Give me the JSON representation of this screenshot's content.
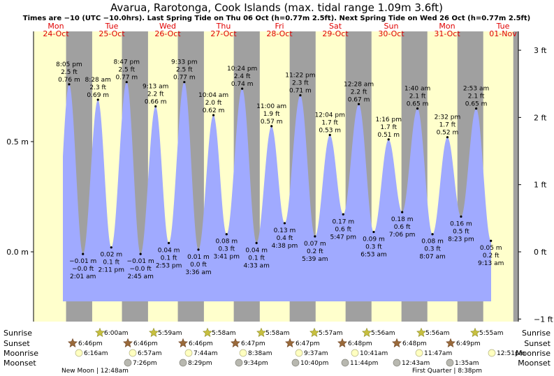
{
  "title": "Avarua, Rarotonga, Cook Islands (max. tidal range 1.09m 3.6ft)",
  "subtitle": "Times are −10 (UTC −10.0hrs). Last Spring Tide on Thu 06 Oct (h=0.77m 2.5ft). Next Spring Tide on Wed 26 Oct (h=0.77m 2.5ft)",
  "colors": {
    "day": "#ffffcc",
    "night": "#a0a0a0",
    "tide": "#a0aaff",
    "day_label": "#e00000"
  },
  "days": [
    {
      "name": "Mon",
      "date": "24-Oct"
    },
    {
      "name": "Tue",
      "date": "25-Oct"
    },
    {
      "name": "Wed",
      "date": "26-Oct"
    },
    {
      "name": "Thu",
      "date": "27-Oct"
    },
    {
      "name": "Fri",
      "date": "28-Oct"
    },
    {
      "name": "Sat",
      "date": "29-Oct"
    },
    {
      "name": "Sun",
      "date": "30-Oct"
    },
    {
      "name": "Mon",
      "date": "31-Oct"
    },
    {
      "name": "Tue",
      "date": "01-Nov"
    }
  ],
  "chart_data": {
    "type": "area",
    "x_unit": "date/time",
    "y_unit": "m",
    "ylim": [
      -0.23,
      0.95
    ],
    "left_ticks": [
      "0.5 m",
      "0.0 m"
    ],
    "left_tick_values": [
      0.5,
      0.0
    ],
    "right_ticks": [
      "3 ft",
      "2 ft",
      "1 ft",
      "0 ft",
      "−1 ft"
    ],
    "right_tick_values_ft": [
      3,
      2,
      1,
      0,
      -1
    ],
    "tides": [
      {
        "type": "high",
        "time": "8:05 pm",
        "day": 0,
        "m": 0.76,
        "ft": "2.5 ft",
        "m_label": "0.76 m"
      },
      {
        "type": "low",
        "time": "2:01 am",
        "day": 1,
        "m": -0.01,
        "ft": "−0.0 ft",
        "m_label": "−0.01 m"
      },
      {
        "type": "high",
        "time": "8:28 am",
        "day": 1,
        "m": 0.69,
        "ft": "2.3 ft",
        "m_label": "0.69 m"
      },
      {
        "type": "low",
        "time": "2:11 pm",
        "day": 1,
        "m": 0.02,
        "ft": "0.1 ft",
        "m_label": "0.02 m"
      },
      {
        "type": "high",
        "time": "8:47 pm",
        "day": 1,
        "m": 0.77,
        "ft": "2.5 ft",
        "m_label": "0.77 m"
      },
      {
        "type": "low",
        "time": "2:45 am",
        "day": 2,
        "m": -0.01,
        "ft": "−0.0 ft",
        "m_label": "−0.01 m"
      },
      {
        "type": "high",
        "time": "9:13 am",
        "day": 2,
        "m": 0.66,
        "ft": "2.2 ft",
        "m_label": "0.66 m"
      },
      {
        "type": "low",
        "time": "2:53 pm",
        "day": 2,
        "m": 0.04,
        "ft": "0.1 ft",
        "m_label": "0.04 m"
      },
      {
        "type": "high",
        "time": "9:33 pm",
        "day": 2,
        "m": 0.77,
        "ft": "2.5 ft",
        "m_label": "0.77 m"
      },
      {
        "type": "low",
        "time": "3:36 am",
        "day": 3,
        "m": 0.01,
        "ft": "0.0 ft",
        "m_label": "0.01 m"
      },
      {
        "type": "high",
        "time": "10:04 am",
        "day": 3,
        "m": 0.62,
        "ft": "2.0 ft",
        "m_label": "0.62 m"
      },
      {
        "type": "low",
        "time": "3:41 pm",
        "day": 3,
        "m": 0.08,
        "ft": "0.3 ft",
        "m_label": "0.08 m"
      },
      {
        "type": "high",
        "time": "10:24 pm",
        "day": 3,
        "m": 0.74,
        "ft": "2.4 ft",
        "m_label": "0.74 m"
      },
      {
        "type": "low",
        "time": "4:33 am",
        "day": 4,
        "m": 0.04,
        "ft": "0.1 ft",
        "m_label": "0.04 m"
      },
      {
        "type": "high",
        "time": "11:00 am",
        "day": 4,
        "m": 0.57,
        "ft": "1.9 ft",
        "m_label": "0.57 m"
      },
      {
        "type": "low",
        "time": "4:38 pm",
        "day": 4,
        "m": 0.13,
        "ft": "0.4 ft",
        "m_label": "0.13 m"
      },
      {
        "type": "high",
        "time": "11:22 pm",
        "day": 4,
        "m": 0.71,
        "ft": "2.3 ft",
        "m_label": "0.71 m"
      },
      {
        "type": "low",
        "time": "5:39 am",
        "day": 5,
        "m": 0.07,
        "ft": "0.2 ft",
        "m_label": "0.07 m"
      },
      {
        "type": "high",
        "time": "12:04 pm",
        "day": 5,
        "m": 0.53,
        "ft": "1.7 ft",
        "m_label": "0.53 m"
      },
      {
        "type": "low",
        "time": "5:47 pm",
        "day": 5,
        "m": 0.17,
        "ft": "0.6 ft",
        "m_label": "0.17 m"
      },
      {
        "type": "low",
        "time": "6:53 am",
        "day": 6,
        "m": 0.09,
        "ft": "0.3 ft",
        "m_label": "0.09 m"
      },
      {
        "type": "high",
        "time": "12:28 am",
        "day": 6,
        "m": 0.67,
        "ft": "2.2 ft",
        "m_label": "0.67 m"
      },
      {
        "type": "high",
        "time": "1:16 pm",
        "day": 6,
        "m": 0.51,
        "ft": "1.7 ft",
        "m_label": "0.51 m"
      },
      {
        "type": "low",
        "time": "7:06 pm",
        "day": 6,
        "m": 0.18,
        "ft": "0.6 ft",
        "m_label": "0.18 m"
      },
      {
        "type": "high",
        "time": "1:40 am",
        "day": 7,
        "m": 0.65,
        "ft": "2.1 ft",
        "m_label": "0.65 m"
      },
      {
        "type": "low",
        "time": "8:07 am",
        "day": 7,
        "m": 0.08,
        "ft": "0.3 ft",
        "m_label": "0.08 m"
      },
      {
        "type": "high",
        "time": "2:32 pm",
        "day": 7,
        "m": 0.52,
        "ft": "1.7 ft",
        "m_label": "0.52 m"
      },
      {
        "type": "low",
        "time": "8:23 pm",
        "day": 7,
        "m": 0.16,
        "ft": "0.5 ft",
        "m_label": "0.16 m"
      },
      {
        "type": "high",
        "time": "2:53 am",
        "day": 8,
        "m": 0.65,
        "ft": "2.1 ft",
        "m_label": "0.65 m"
      },
      {
        "type": "low",
        "time": "9:13 am",
        "day": 8,
        "m": 0.05,
        "ft": "0.2 ft",
        "m_label": "0.05 m"
      }
    ]
  },
  "rows": {
    "sunrise_label": "Sunrise",
    "sunset_label": "Sunset",
    "moonrise_label": "Moonrise",
    "moonset_label": "Moonset"
  },
  "sunrise": [
    "6:00am",
    "5:59am",
    "5:58am",
    "5:58am",
    "5:57am",
    "5:56am",
    "5:56am",
    "5:55am"
  ],
  "sunset": [
    "6:46pm",
    "6:46pm",
    "6:46pm",
    "6:47pm",
    "6:47pm",
    "6:48pm",
    "6:48pm",
    "6:49pm"
  ],
  "moonrise": [
    "6:16am",
    "6:57am",
    "7:44am",
    "8:38am",
    "9:37am",
    "10:41am",
    "11:47am",
    "12:51pm"
  ],
  "moonset": [
    "7:26pm",
    "8:29pm",
    "9:34pm",
    "10:40pm",
    "11:44pm",
    "12:43am",
    "1:35am"
  ],
  "moon_phases": [
    "New Moon | 12:48am",
    "First Quarter | 8:38pm"
  ]
}
